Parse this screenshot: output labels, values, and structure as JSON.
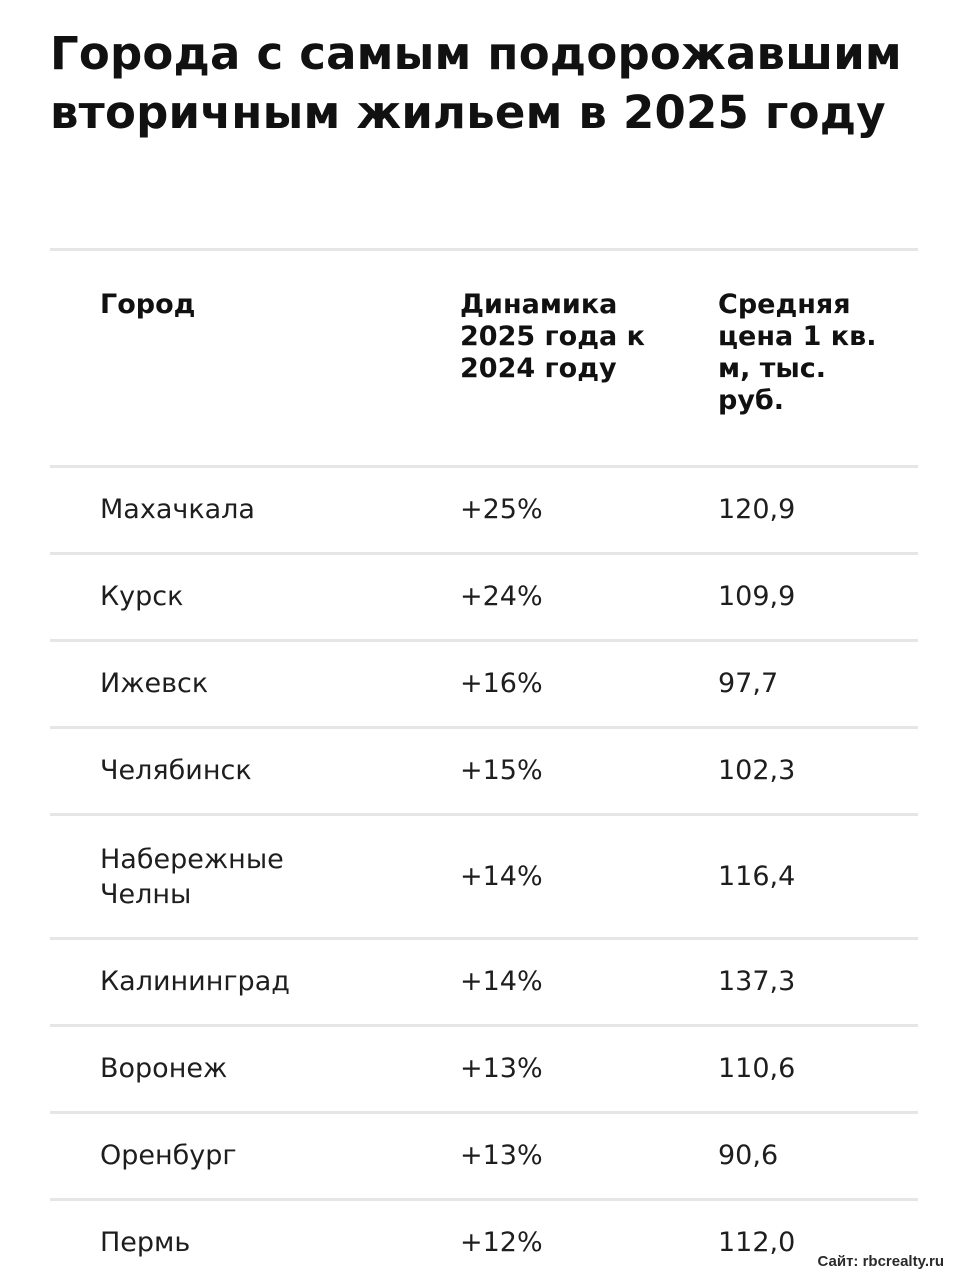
{
  "title": "Города с самым подорожавшим вторичным жильем в 2025 году",
  "table": {
    "headers": {
      "city": "Город",
      "dynamics": "Динамика 2025 года к 2024 году",
      "price": "Средняя цена 1 кв. м, тыс. руб."
    },
    "rows": [
      {
        "city": "Махачкала",
        "dynamics": "+25%",
        "price": "120,9"
      },
      {
        "city": "Курск",
        "dynamics": "+24%",
        "price": "109,9"
      },
      {
        "city": "Ижевск",
        "dynamics": "+16%",
        "price": "97,7"
      },
      {
        "city": "Челябинск",
        "dynamics": "+15%",
        "price": "102,3"
      },
      {
        "city": "Набережные Челны",
        "dynamics": "+14%",
        "price": "116,4"
      },
      {
        "city": "Калининград",
        "dynamics": "+14%",
        "price": "137,3"
      },
      {
        "city": "Воронеж",
        "dynamics": "+13%",
        "price": "110,6"
      },
      {
        "city": "Оренбург",
        "dynamics": "+13%",
        "price": "90,6"
      },
      {
        "city": "Пермь",
        "dynamics": "+12%",
        "price": "112,0"
      }
    ]
  },
  "source": "Сайт: rbcrealty.ru"
}
